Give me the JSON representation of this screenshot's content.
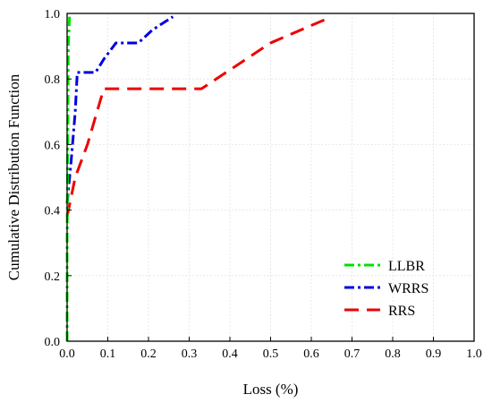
{
  "chart_data": {
    "type": "line",
    "title": "",
    "xlabel": "Loss (%)",
    "ylabel": "Cumulative Distribution Function",
    "xlim": [
      0,
      1
    ],
    "ylim": [
      0,
      1
    ],
    "x_ticks": [
      "0.0",
      "0.1",
      "0.2",
      "0.3",
      "0.4",
      "0.5",
      "0.6",
      "0.7",
      "0.8",
      "0.9",
      "1.0"
    ],
    "y_ticks": [
      "0.0",
      "0.2",
      "0.4",
      "0.6",
      "0.8",
      "1.0"
    ],
    "grid": true,
    "legend_position": "bottom-right",
    "series": [
      {
        "name": "LLBR",
        "color": "#00e000",
        "style": "dash-dot",
        "points": [
          [
            0,
            0
          ],
          [
            0.0,
            0.3
          ],
          [
            0.003,
            0.9
          ],
          [
            0.006,
            0.99
          ]
        ]
      },
      {
        "name": "WRRS",
        "color": "#0000e0",
        "style": "dash-dot",
        "points": [
          [
            0,
            0.42
          ],
          [
            0.01,
            0.55
          ],
          [
            0.02,
            0.7
          ],
          [
            0.025,
            0.82
          ],
          [
            0.07,
            0.82
          ],
          [
            0.09,
            0.86
          ],
          [
            0.12,
            0.91
          ],
          [
            0.175,
            0.91
          ],
          [
            0.21,
            0.95
          ],
          [
            0.26,
            0.99
          ]
        ]
      },
      {
        "name": "RRS",
        "color": "#ee0000",
        "style": "dashed",
        "points": [
          [
            0,
            0.38
          ],
          [
            0.02,
            0.5
          ],
          [
            0.05,
            0.6
          ],
          [
            0.09,
            0.77
          ],
          [
            0.33,
            0.77
          ],
          [
            0.5,
            0.91
          ],
          [
            0.65,
            0.99
          ]
        ]
      }
    ]
  }
}
